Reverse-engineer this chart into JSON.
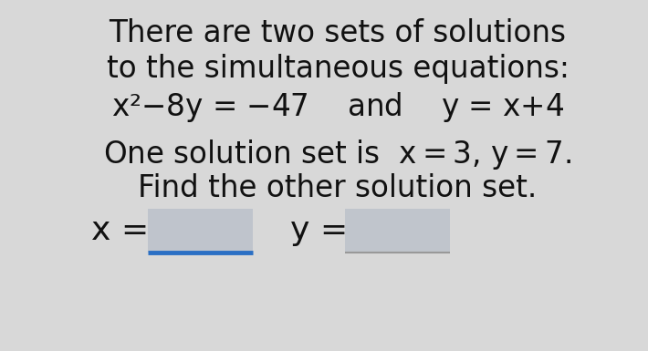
{
  "bg_color": "#d8d8d8",
  "text_color": "#111111",
  "line1": "There are two sets of solutions",
  "line2": "to the simultaneous equations:",
  "line4": "Find the other solution set.",
  "x_label": "x =",
  "y_label": "y =",
  "box1_color": "#bfc4cc",
  "box2_color": "#c0c5cc",
  "underline_color": "#2a6fc4",
  "font_size_main": 23.5,
  "font_size_eq": 23.5,
  "font_size_label": 26
}
